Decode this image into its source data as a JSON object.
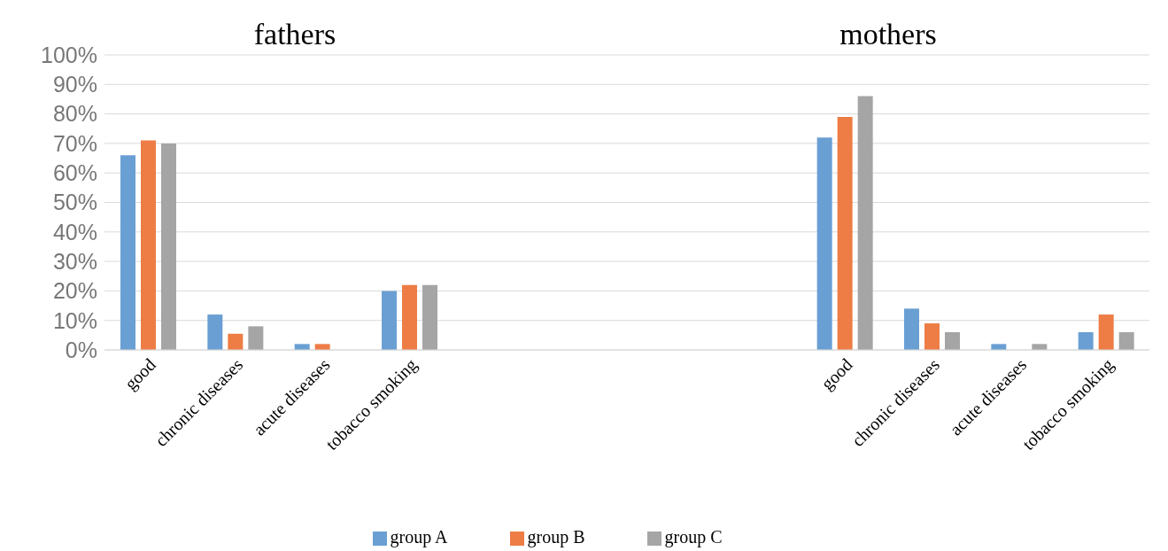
{
  "chart_data": {
    "type": "bar",
    "annotations": [
      "fathers",
      "mothers"
    ],
    "categories": [
      "good",
      "chronic diseases",
      "acute diseases",
      "tobacco smoking",
      null,
      null,
      null,
      null,
      "good",
      "chronic diseases",
      "acute diseases",
      "tobacco smoking"
    ],
    "series": [
      {
        "name": "group A",
        "color": "#6a9fd3",
        "values": [
          66,
          12,
          2,
          20,
          null,
          null,
          null,
          null,
          72,
          14,
          2,
          6
        ]
      },
      {
        "name": "group B",
        "color": "#ed7d45",
        "values": [
          71,
          5.5,
          2,
          22,
          null,
          null,
          null,
          null,
          79,
          9,
          0,
          12
        ]
      },
      {
        "name": "group C",
        "color": "#a5a5a5",
        "values": [
          70,
          8,
          0,
          22,
          null,
          null,
          null,
          null,
          86,
          6,
          2,
          6
        ]
      }
    ],
    "ylim": [
      0,
      100
    ],
    "yticks": [
      {
        "value": 0,
        "label": "0%"
      },
      {
        "value": 10,
        "label": "10%"
      },
      {
        "value": 20,
        "label": "20%"
      },
      {
        "value": 30,
        "label": "30%"
      },
      {
        "value": 40,
        "label": "40%"
      },
      {
        "value": 50,
        "label": "50%"
      },
      {
        "value": 60,
        "label": "60%"
      },
      {
        "value": 70,
        "label": "70%"
      },
      {
        "value": 80,
        "label": "80%"
      },
      {
        "value": 90,
        "label": "90%"
      },
      {
        "value": 100,
        "label": "100%"
      }
    ],
    "grid": "y",
    "legend": "bottom"
  }
}
